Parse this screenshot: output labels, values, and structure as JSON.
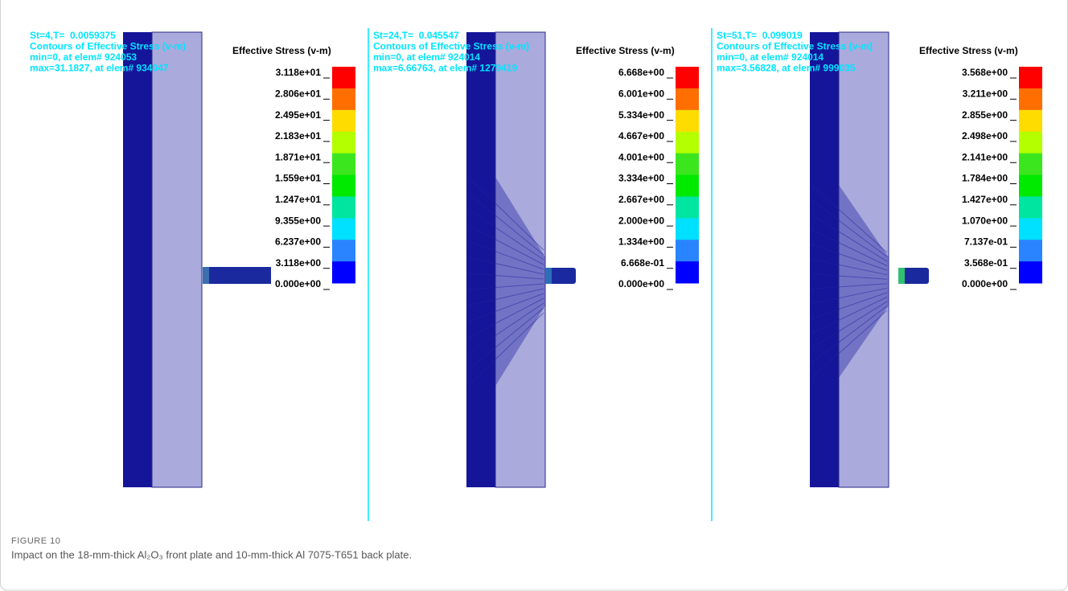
{
  "panels": [
    {
      "header": [
        "St=4,T=  0.0059375",
        "Contours of Effective Stress (v-m)",
        "min=0, at elem# 924053",
        "max=31.1827, at elem# 934047"
      ],
      "legend_title": "Effective Stress (v-m)",
      "legend_labels": [
        "3.118e+01",
        "2.806e+01",
        "2.495e+01",
        "2.183e+01",
        "1.871e+01",
        "1.559e+01",
        "1.247e+01",
        "9.355e+00",
        "6.237e+00",
        "3.118e+00",
        "0.000e+00"
      ]
    },
    {
      "header": [
        "St=24,T=  0.045547",
        "Contours of Effective Stress (v-m)",
        "min=0, at elem# 924014",
        "max=6.66763, at elem# 1279419"
      ],
      "legend_title": "Effective Stress (v-m)",
      "legend_labels": [
        "6.668e+00",
        "6.001e+00",
        "5.334e+00",
        "4.667e+00",
        "4.001e+00",
        "3.334e+00",
        "2.667e+00",
        "2.000e+00",
        "1.334e+00",
        "6.668e-01",
        "0.000e+00"
      ]
    },
    {
      "header": [
        "St=51,T=  0.099019",
        "Contours of Effective Stress (v-m)",
        "min=0, at elem# 924014",
        "max=3.56828, at elem# 999035"
      ],
      "legend_title": "Effective Stress (v-m)",
      "legend_labels": [
        "3.568e+00",
        "3.211e+00",
        "2.855e+00",
        "2.498e+00",
        "2.141e+00",
        "1.784e+00",
        "1.427e+00",
        "1.070e+00",
        "7.137e-01",
        "3.568e-01",
        "0.000e+00"
      ]
    }
  ],
  "caption": {
    "label": "FIGURE 10",
    "text": "Impact on the 18-mm-thick Al₂O₃ front plate and 10-mm-thick Al 7075-T651 back plate."
  }
}
